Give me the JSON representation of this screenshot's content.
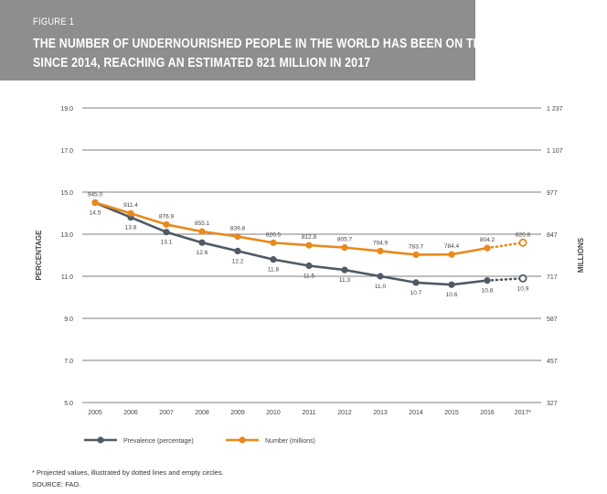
{
  "header": {
    "figure_label": "FIGURE 1",
    "title_line_1": "THE NUMBER OF UNDERNOURISHED PEOPLE IN THE WORLD HAS BEEN ON THE RISE",
    "title_line_2": "SINCE 2014, REACHING AN ESTIMATED 821 MILLION IN 2017"
  },
  "footnote": "* Projected values, illustrated by dotted lines and empty circles.",
  "source": "SOURCE: FAO.",
  "chart_data": {
    "type": "line",
    "categories": [
      "2005",
      "2006",
      "2007",
      "2008",
      "2009",
      "2010",
      "2011",
      "2012",
      "2013",
      "2014",
      "2015",
      "2016",
      "2017*"
    ],
    "y_left": {
      "label": "PERCENTAGE",
      "range": [
        5.0,
        19.0
      ],
      "ticks": [
        "19.0",
        "17.0",
        "15.0",
        "13.0",
        "11.0",
        "9.0",
        "7.0",
        "5.0"
      ]
    },
    "y_right": {
      "label": "MILLIONS",
      "range": [
        327,
        1237
      ],
      "ticks": [
        "1 237",
        "1 107",
        "977",
        "847",
        "717",
        "587",
        "457",
        "327"
      ]
    },
    "grid": true,
    "legend_position": "bottom-left",
    "series": [
      {
        "name": "Prevalence (percentage)",
        "axis": "left",
        "color": "#4f5a66",
        "values": [
          14.5,
          13.8,
          13.1,
          12.6,
          12.2,
          11.8,
          11.5,
          11.3,
          11.0,
          10.7,
          10.6,
          10.8,
          10.9
        ],
        "labels": [
          "14.5",
          "13.8",
          "13.1",
          "12.6",
          "12.2",
          "11.8",
          "11.5",
          "11.3",
          "11.0",
          "10.7",
          "10.6",
          "10.8",
          "10.9"
        ],
        "projected_from_index": 12
      },
      {
        "name": "Number (millions)",
        "axis": "right",
        "color": "#e8891c",
        "values": [
          945.0,
          911.4,
          876.9,
          855.1,
          839.8,
          820.5,
          812.8,
          805.7,
          794.9,
          783.7,
          784.4,
          804.2,
          820.8
        ],
        "labels": [
          "945.0",
          "911.4",
          "876.9",
          "855.1",
          "839.8",
          "820.5",
          "812.8",
          "805.7",
          "794.9",
          "783.7",
          "784.4",
          "804.2",
          "820.8"
        ],
        "projected_from_index": 12
      }
    ]
  }
}
